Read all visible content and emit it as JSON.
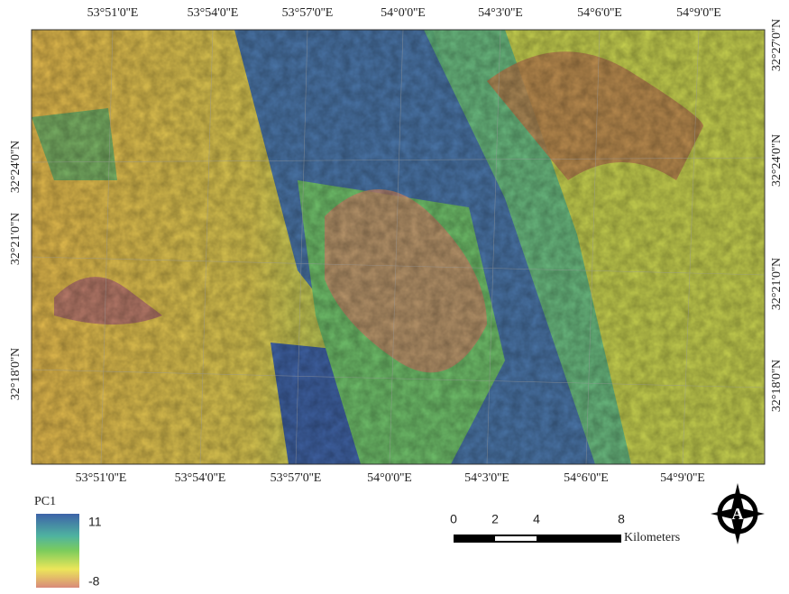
{
  "map": {
    "top_labels": [
      "53°51'0''E",
      "53°54'0''E",
      "53°57'0''E",
      "54°0'0''E",
      "54°3'0''E",
      "54°6'0''E",
      "54°9'0''E"
    ],
    "bottom_labels": [
      "53°51'0''E",
      "53°54'0''E",
      "53°57'0''E",
      "54°0'0''E",
      "54°3'0''E",
      "54°6'0''E",
      "54°9'0''E"
    ],
    "left_labels": [
      "32°24'0''N",
      "32°21'0''N",
      "32°18'0''N"
    ],
    "right_labels": [
      "32°27'0''N",
      "32°24'0''N",
      "32°21'0''N",
      "32°18'0''N"
    ]
  },
  "legend": {
    "title": "PC1",
    "high_label": "11",
    "low_label": "-8"
  },
  "scale_bar": {
    "labels": [
      "0",
      "2",
      "4",
      "8"
    ],
    "unit": "Kilometers"
  }
}
